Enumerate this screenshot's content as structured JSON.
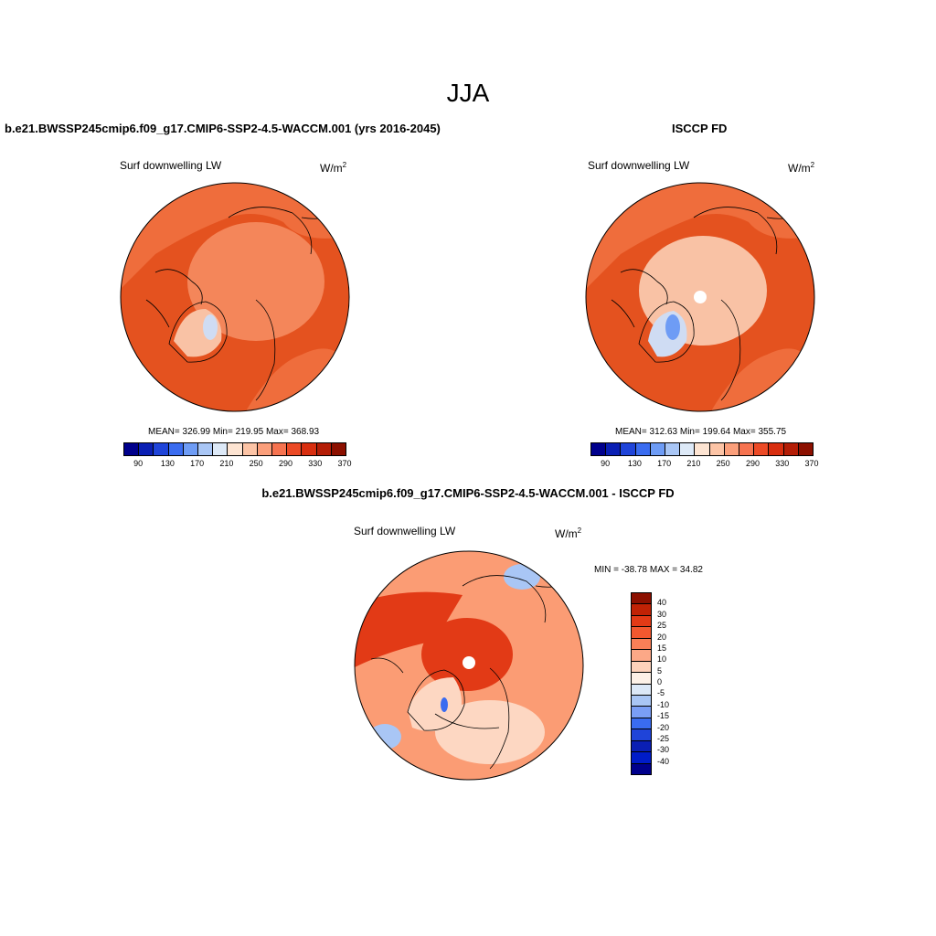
{
  "title": "JJA",
  "panel_left": {
    "header": "b.e21.BWSSP245cmip6.f09_g17.CMIP6-SSP2-4.5-WACCM.001 (yrs 2016-2045)",
    "variable": "Surf downwelling LW",
    "units_base": "W/m",
    "units_exp": "2",
    "stats": "MEAN= 326.99  Min= 219.95  Max= 368.93"
  },
  "panel_right": {
    "header": "ISCCP FD",
    "variable": "Surf downwelling LW",
    "units_base": "W/m",
    "units_exp": "2",
    "stats": "MEAN= 312.63  Min= 199.64  Max= 355.75"
  },
  "panel_bottom": {
    "header": "b.e21.BWSSP245cmip6.f09_g17.CMIP6-SSP2-4.5-WACCM.001 - ISCCP FD",
    "variable": "Surf downwelling LW",
    "units_base": "W/m",
    "units_exp": "2",
    "stats": "MIN = -38.78 MAX =  34.82"
  },
  "abs_colorbar": {
    "tick_labels": [
      "90",
      "130",
      "170",
      "210",
      "250",
      "290",
      "330",
      "370"
    ],
    "colors": [
      "#00008c",
      "#0a1fb4",
      "#1f44d9",
      "#3a6cf0",
      "#6e9cf5",
      "#a9c6f5",
      "#dde9f7",
      "#fde4d2",
      "#fcc4a6",
      "#fb9f7b",
      "#f67350",
      "#ec4a26",
      "#d82e0f",
      "#b41d06",
      "#8c1000"
    ]
  },
  "diff_colorbar": {
    "tick_labels": [
      "40",
      "30",
      "25",
      "20",
      "15",
      "10",
      "5",
      "0",
      "-5",
      "-10",
      "-15",
      "-20",
      "-25",
      "-30",
      "-40"
    ],
    "colors": [
      "#8c1000",
      "#c02205",
      "#e23a16",
      "#f2582f",
      "#f97f57",
      "#fca887",
      "#fdd2bb",
      "#fdf1e7",
      "#dce8f7",
      "#a9c6f5",
      "#7a9ef5",
      "#3a6cf0",
      "#1f44d9",
      "#0a1fb4",
      "#001cc8",
      "#00008c"
    ]
  },
  "map_colors": {
    "ocean_abs": "#e4521f",
    "land_abs": "#ef6d3c",
    "arctic_abs": "#f4865a",
    "greenland_abs": "#f9c2a5",
    "ice_abs": "#cfdcf3",
    "diff_base": "#fb9c74",
    "diff_hot": "#e23a16",
    "diff_light": "#fdd7c2",
    "diff_cool": "#a9c6f5",
    "diff_blue": "#3a6cf0"
  }
}
